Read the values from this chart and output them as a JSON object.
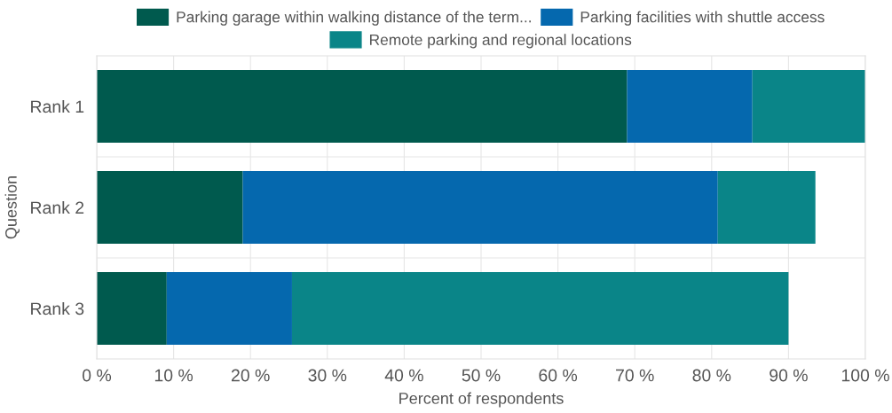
{
  "chart_data": {
    "type": "bar",
    "orientation": "horizontal",
    "stacked": true,
    "xlabel": "Percent of respondents",
    "ylabel": "Question",
    "categories": [
      "Rank 1",
      "Rank 2",
      "Rank 3"
    ],
    "series": [
      {
        "name": "Parking garage within walking distance of the term...",
        "color": "#005a4e",
        "values": [
          69,
          19,
          9.1
        ]
      },
      {
        "name": "Parking facilities with shuttle access",
        "color": "#0568ae",
        "values": [
          16.3,
          61.8,
          16.3
        ]
      },
      {
        "name": "Remote parking and regional locations",
        "color": "#0a8588",
        "values": [
          14.7,
          12.7,
          64.6
        ]
      }
    ],
    "xlim": [
      0,
      100
    ],
    "xticks": [
      {
        "value": 0,
        "label": "0 %"
      },
      {
        "value": 10,
        "label": "10 %"
      },
      {
        "value": 20,
        "label": "20 %"
      },
      {
        "value": 30,
        "label": "30 %"
      },
      {
        "value": 40,
        "label": "40 %"
      },
      {
        "value": 50,
        "label": "50 %"
      },
      {
        "value": 60,
        "label": "60 %"
      },
      {
        "value": 70,
        "label": "70 %"
      },
      {
        "value": 80,
        "label": "80 %"
      },
      {
        "value": 90,
        "label": "90 %"
      },
      {
        "value": 100,
        "label": "100 %"
      }
    ],
    "grid": true,
    "legend": "top"
  }
}
